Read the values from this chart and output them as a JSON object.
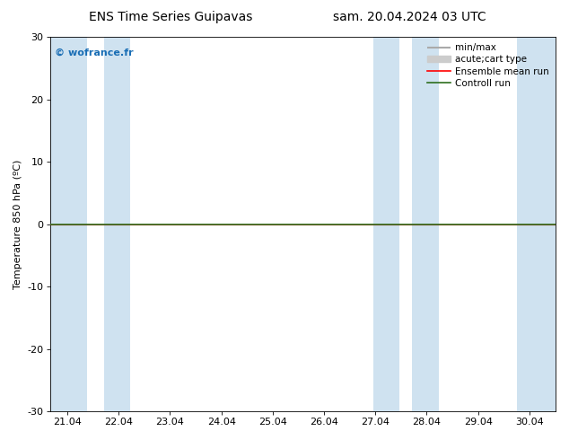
{
  "title_left": "ENS Time Series Guipavas",
  "title_right": "sam. 20.04.2024 03 UTC",
  "ylabel": "Temperature 850 hPa (ºC)",
  "xlim_start": 20.7,
  "xlim_end": 30.55,
  "ylim": [
    -30,
    30
  ],
  "yticks": [
    -30,
    -20,
    -10,
    0,
    10,
    20,
    30
  ],
  "xtick_labels": [
    "21.04",
    "22.04",
    "23.04",
    "24.04",
    "25.04",
    "26.04",
    "27.04",
    "28.04",
    "29.04",
    "30.04"
  ],
  "xtick_positions": [
    21.04,
    22.04,
    23.04,
    24.04,
    25.04,
    26.04,
    27.04,
    28.04,
    29.04,
    30.04
  ],
  "shaded_bands": [
    [
      20.7,
      21.42
    ],
    [
      21.75,
      22.27
    ],
    [
      27.0,
      27.5
    ],
    [
      27.75,
      28.27
    ],
    [
      29.8,
      30.55
    ]
  ],
  "shade_color": "#cfe2f0",
  "zero_line_y": 0,
  "control_run_y": 0,
  "ensemble_mean_y": 0,
  "watermark_text": "© wofrance.fr",
  "watermark_color": "#1a6eb5",
  "legend_entries": [
    {
      "label": "min/max"
    },
    {
      "label": "acute;cart type"
    },
    {
      "label": "Ensemble mean run"
    },
    {
      "label": "Controll run"
    }
  ],
  "background_color": "#ffffff",
  "plot_bg_color": "#ffffff",
  "border_color": "#000000",
  "font_size_title": 10,
  "font_size_axis": 8,
  "font_size_ticks": 8,
  "font_size_legend": 7.5,
  "font_size_watermark": 8,
  "minmax_color": "#aaaaaa",
  "quartile_color": "#cccccc",
  "control_run_color": "#2e6e1e",
  "ensemble_mean_color": "#ff0000",
  "zero_line_color": "#2e6e1e"
}
